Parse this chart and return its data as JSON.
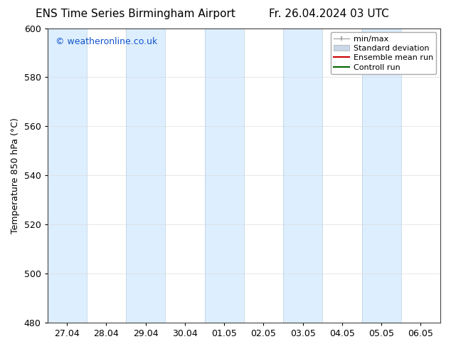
{
  "title_left": "ENS Time Series Birmingham Airport",
  "title_right": "Fr. 26.04.2024 03 UTC",
  "ylabel": "Temperature 850 hPa (°C)",
  "ylim": [
    480,
    600
  ],
  "yticks": [
    480,
    500,
    520,
    540,
    560,
    580,
    600
  ],
  "x_tick_labels": [
    "27.04",
    "28.04",
    "29.04",
    "30.04",
    "01.05",
    "02.05",
    "03.05",
    "04.05",
    "05.05",
    "06.05"
  ],
  "watermark": "© weatheronline.co.uk",
  "watermark_color": "#1155cc",
  "shaded_indices": [
    0,
    2,
    4,
    6,
    8
  ],
  "shaded_color": "#ddeeff",
  "bg_color": "#ffffff",
  "plot_bg_color": "#ffffff",
  "legend_entries": [
    {
      "label": "min/max",
      "color": "#aaaaaa",
      "lw": 1.5,
      "style": "solid"
    },
    {
      "label": "Standard deviation",
      "color": "#c8d8e8",
      "lw": 6,
      "style": "solid"
    },
    {
      "label": "Ensemble mean run",
      "color": "#cc0000",
      "lw": 1.5,
      "style": "solid"
    },
    {
      "label": "Controll run",
      "color": "#006600",
      "lw": 1.5,
      "style": "solid"
    }
  ],
  "title_fontsize": 11,
  "axis_fontsize": 9,
  "tick_fontsize": 9,
  "legend_fontsize": 8
}
